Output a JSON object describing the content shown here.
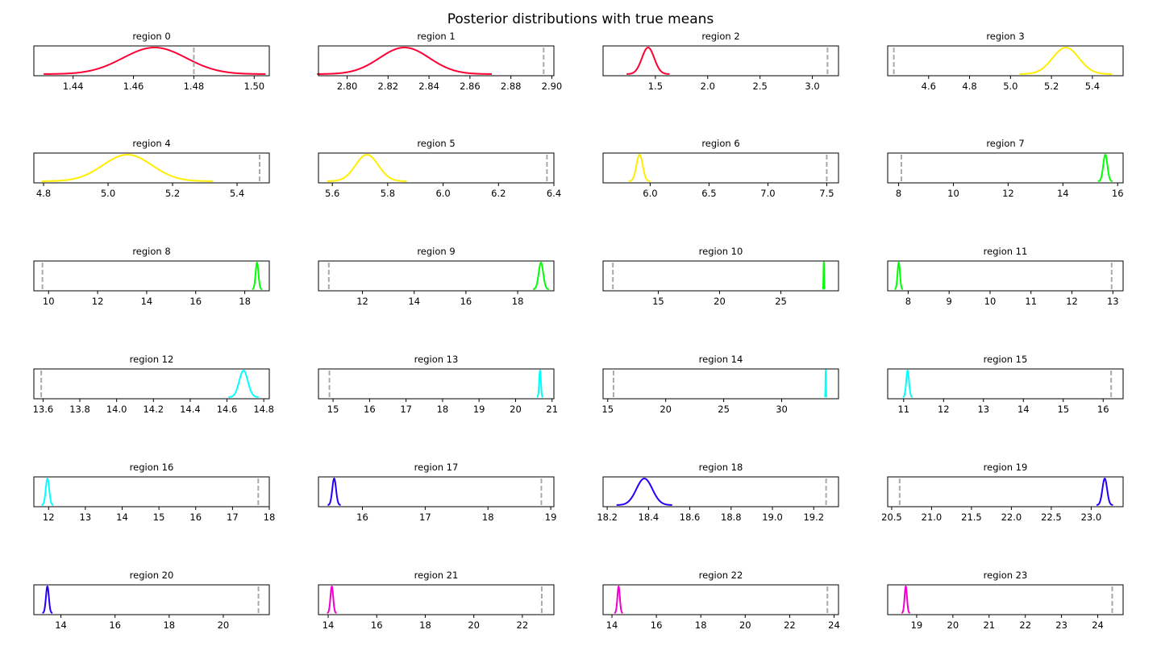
{
  "title": "Posterior distributions with true means",
  "colors": {
    "truth_line": "#aaaaaa",
    "axes": "#000000"
  },
  "chart_data": [
    {
      "type": "line",
      "title": "region 0",
      "color": "#ff0033",
      "mean": 1.467,
      "sd": 0.0105,
      "true_mean": 1.48,
      "xlim": [
        1.427,
        1.505
      ],
      "ticks": [
        1.44,
        1.46,
        1.48,
        1.5
      ],
      "tick_labels": [
        "1.44",
        "1.46",
        "1.48",
        "1.50"
      ],
      "grid": false
    },
    {
      "type": "line",
      "title": "region 1",
      "color": "#ff0033",
      "mean": 2.828,
      "sd": 0.0122,
      "true_mean": 2.896,
      "xlim": [
        2.786,
        2.901
      ],
      "ticks": [
        2.8,
        2.82,
        2.84,
        2.86,
        2.88,
        2.9
      ],
      "tick_labels": [
        "2.80",
        "2.82",
        "2.84",
        "2.86",
        "2.88",
        "2.90"
      ],
      "grid": false
    },
    {
      "type": "line",
      "title": "region 2",
      "color": "#ff0033",
      "mean": 1.43,
      "sd": 0.0586,
      "true_mean": 3.145,
      "xlim": [
        1.0,
        3.25
      ],
      "ticks": [
        1.5,
        2.0,
        2.5,
        3.0
      ],
      "tick_labels": [
        "1.5",
        "2.0",
        "2.5",
        "3.0"
      ],
      "grid": false
    },
    {
      "type": "line",
      "title": "region 3",
      "color": "#ffee00",
      "mean": 5.27,
      "sd": 0.0644,
      "true_mean": 4.43,
      "xlim": [
        4.4,
        5.55
      ],
      "ticks": [
        4.6,
        4.8,
        5.0,
        5.2,
        5.4
      ],
      "tick_labels": [
        "4.6",
        "4.8",
        "5.0",
        "5.2",
        "5.4"
      ],
      "grid": false
    },
    {
      "type": "line",
      "title": "region 4",
      "color": "#ffee00",
      "mean": 5.06,
      "sd": 0.0759,
      "true_mean": 5.47,
      "xlim": [
        4.77,
        5.5
      ],
      "ticks": [
        4.8,
        5.0,
        5.2,
        5.4
      ],
      "tick_labels": [
        "4.8",
        "5.0",
        "5.2",
        "5.4"
      ],
      "grid": false
    },
    {
      "type": "line",
      "title": "region 5",
      "color": "#ffee00",
      "mean": 5.725,
      "sd": 0.041,
      "true_mean": 6.375,
      "xlim": [
        5.55,
        6.4
      ],
      "ticks": [
        5.6,
        5.8,
        6.0,
        6.2,
        6.4
      ],
      "tick_labels": [
        "5.6",
        "5.8",
        "6.0",
        "6.2",
        "6.4"
      ],
      "grid": false
    },
    {
      "type": "line",
      "title": "region 6",
      "color": "#ffee00",
      "mean": 5.91,
      "sd": 0.0263,
      "true_mean": 7.5,
      "xlim": [
        5.6,
        7.6
      ],
      "ticks": [
        6.0,
        6.5,
        7.0,
        7.5
      ],
      "tick_labels": [
        "6.0",
        "6.5",
        "7.0",
        "7.5"
      ],
      "grid": false
    },
    {
      "type": "line",
      "title": "region 7",
      "color": "#00ff00",
      "mean": 15.55,
      "sd": 0.076,
      "true_mean": 8.1,
      "xlim": [
        7.6,
        16.2
      ],
      "ticks": [
        8,
        10,
        12,
        14,
        16
      ],
      "tick_labels": [
        "8",
        "10",
        "12",
        "14",
        "16"
      ],
      "grid": false
    },
    {
      "type": "line",
      "title": "region 8",
      "color": "#00ff00",
      "mean": 18.5,
      "sd": 0.0574,
      "true_mean": 9.75,
      "xlim": [
        9.4,
        19.0
      ],
      "ticks": [
        10,
        12,
        14,
        16,
        18
      ],
      "tick_labels": [
        "10",
        "12",
        "14",
        "16",
        "18"
      ],
      "grid": false
    },
    {
      "type": "line",
      "title": "region 9",
      "color": "#00ff00",
      "mean": 18.9,
      "sd": 0.0878,
      "true_mean": 10.7,
      "xlim": [
        10.3,
        19.4
      ],
      "ticks": [
        12,
        14,
        16,
        18
      ],
      "tick_labels": [
        "12",
        "14",
        "16",
        "18"
      ],
      "grid": false
    },
    {
      "type": "line",
      "title": "region 10",
      "color": "#00ff00",
      "mean": 28.5,
      "sd": 0.0226,
      "true_mean": 11.3,
      "xlim": [
        10.5,
        29.7
      ],
      "ticks": [
        15,
        20,
        25
      ],
      "tick_labels": [
        "15",
        "20",
        "25"
      ],
      "grid": false
    },
    {
      "type": "line",
      "title": "region 11",
      "color": "#00ff00",
      "mean": 7.77,
      "sd": 0.0293,
      "true_mean": 12.97,
      "xlim": [
        7.5,
        13.25
      ],
      "ticks": [
        8,
        9,
        10,
        11,
        12,
        13
      ],
      "tick_labels": [
        "8",
        "9",
        "10",
        "11",
        "12",
        "13"
      ],
      "grid": false
    },
    {
      "type": "line",
      "title": "region 12",
      "color": "#00ffff",
      "mean": 14.69,
      "sd": 0.0234,
      "true_mean": 13.59,
      "xlim": [
        13.55,
        14.83
      ],
      "ticks": [
        13.6,
        13.8,
        14.0,
        14.2,
        14.4,
        14.6,
        14.8
      ],
      "tick_labels": [
        "13.6",
        "13.8",
        "14.0",
        "14.2",
        "14.4",
        "14.6",
        "14.8"
      ],
      "grid": false
    },
    {
      "type": "line",
      "title": "region 13",
      "color": "#00ffff",
      "mean": 20.67,
      "sd": 0.0234,
      "true_mean": 14.9,
      "xlim": [
        14.6,
        21.05
      ],
      "ticks": [
        15,
        16,
        17,
        18,
        19,
        20,
        21
      ],
      "tick_labels": [
        "15",
        "16",
        "17",
        "18",
        "19",
        "20",
        "21"
      ],
      "grid": false
    },
    {
      "type": "line",
      "title": "region 14",
      "color": "#00ffff",
      "mean": 33.8,
      "sd": 0.0234,
      "true_mean": 15.5,
      "xlim": [
        14.6,
        34.9
      ],
      "ticks": [
        15,
        20,
        25,
        30
      ],
      "tick_labels": [
        "15",
        "20",
        "25",
        "30"
      ],
      "grid": false
    },
    {
      "type": "line",
      "title": "region 15",
      "color": "#00ffff",
      "mean": 11.1,
      "sd": 0.0351,
      "true_mean": 16.2,
      "xlim": [
        10.6,
        16.5
      ],
      "ticks": [
        11,
        12,
        13,
        14,
        15,
        16
      ],
      "tick_labels": [
        "11",
        "12",
        "13",
        "14",
        "15",
        "16"
      ],
      "grid": false
    },
    {
      "type": "line",
      "title": "region 16",
      "color": "#00ffff",
      "mean": 11.97,
      "sd": 0.0464,
      "true_mean": 17.7,
      "xlim": [
        11.6,
        18.0
      ],
      "ticks": [
        12,
        13,
        14,
        15,
        16,
        17,
        18
      ],
      "tick_labels": [
        "12",
        "13",
        "14",
        "15",
        "16",
        "17",
        "18"
      ],
      "grid": false
    },
    {
      "type": "line",
      "title": "region 17",
      "color": "#2200ff",
      "mean": 15.55,
      "sd": 0.0297,
      "true_mean": 18.85,
      "xlim": [
        15.3,
        19.05
      ],
      "ticks": [
        16,
        17,
        18,
        19
      ],
      "tick_labels": [
        "16",
        "17",
        "18",
        "19"
      ],
      "grid": false
    },
    {
      "type": "line",
      "title": "region 18",
      "color": "#2200ff",
      "mean": 18.38,
      "sd": 0.0385,
      "true_mean": 19.26,
      "xlim": [
        18.18,
        19.32
      ],
      "ticks": [
        18.2,
        18.4,
        18.6,
        18.8,
        19.0,
        19.2
      ],
      "tick_labels": [
        "18.2",
        "18.4",
        "18.6",
        "18.8",
        "19.0",
        "19.2"
      ],
      "grid": false
    },
    {
      "type": "line",
      "title": "region 19",
      "color": "#2200ff",
      "mean": 23.17,
      "sd": 0.0293,
      "true_mean": 20.6,
      "xlim": [
        20.45,
        23.4
      ],
      "ticks": [
        20.5,
        21.0,
        21.5,
        22.0,
        22.5,
        23.0
      ],
      "tick_labels": [
        "20.5",
        "21.0",
        "21.5",
        "22.0",
        "22.5",
        "23.0"
      ],
      "grid": false
    },
    {
      "type": "line",
      "title": "region 20",
      "color": "#2200ff",
      "mean": 13.5,
      "sd": 0.0535,
      "true_mean": 21.3,
      "xlim": [
        13.0,
        21.7
      ],
      "ticks": [
        14,
        16,
        18,
        20
      ],
      "tick_labels": [
        "14",
        "16",
        "18",
        "20"
      ],
      "grid": false
    },
    {
      "type": "line",
      "title": "region 21",
      "color": "#ee00cc",
      "mean": 14.15,
      "sd": 0.0562,
      "true_mean": 22.8,
      "xlim": [
        13.6,
        23.3
      ],
      "ticks": [
        14,
        16,
        18,
        20,
        22
      ],
      "tick_labels": [
        "14",
        "16",
        "18",
        "20",
        "22"
      ],
      "grid": false
    },
    {
      "type": "line",
      "title": "region 22",
      "color": "#ee00cc",
      "mean": 14.3,
      "sd": 0.0544,
      "true_mean": 23.7,
      "xlim": [
        13.6,
        24.2
      ],
      "ticks": [
        14,
        16,
        18,
        20,
        22,
        24
      ],
      "tick_labels": [
        "14",
        "16",
        "18",
        "20",
        "22",
        "24"
      ],
      "grid": false
    },
    {
      "type": "line",
      "title": "region 23",
      "color": "#ee00cc",
      "mean": 18.7,
      "sd": 0.0331,
      "true_mean": 24.4,
      "xlim": [
        18.2,
        24.7
      ],
      "ticks": [
        19,
        20,
        21,
        22,
        23,
        24
      ],
      "tick_labels": [
        "19",
        "20",
        "21",
        "22",
        "23",
        "24"
      ],
      "grid": false
    }
  ]
}
